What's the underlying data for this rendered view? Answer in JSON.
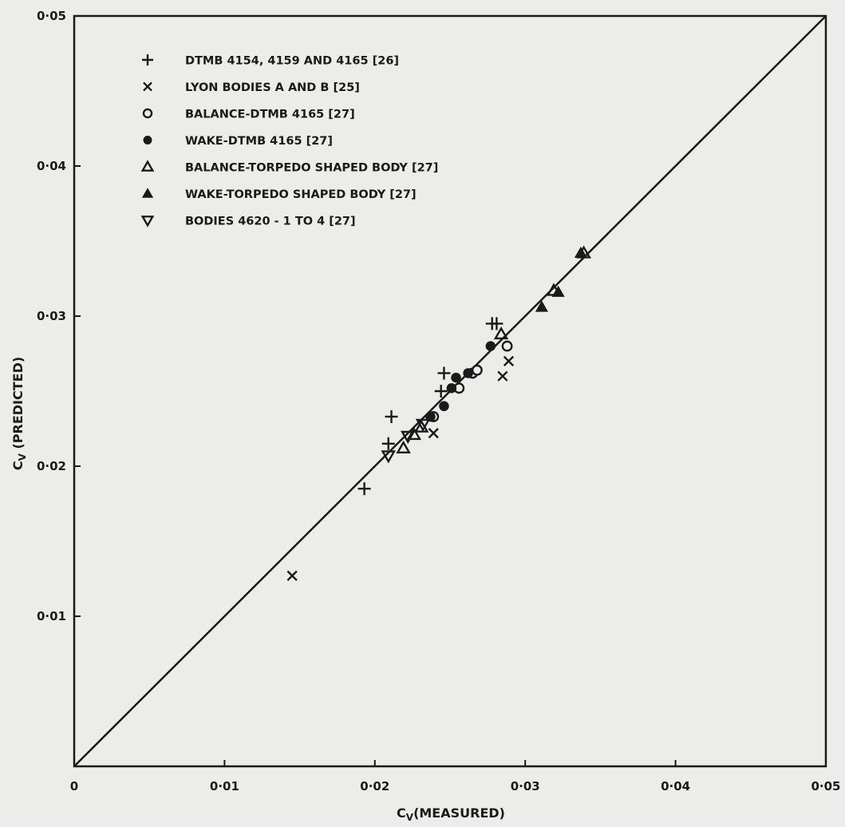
{
  "chart_data": {
    "type": "scatter",
    "xlabel": "C",
    "xlabel_sub": "V",
    "xlabel_rest": "(MEASURED)",
    "ylabel": "C",
    "ylabel_sub": "V",
    "ylabel_rest": " (PREDICTED)",
    "xlim": [
      0,
      0.05
    ],
    "ylim": [
      0,
      0.05
    ],
    "x_ticks": [
      0,
      0.01,
      0.02,
      0.03,
      0.04,
      0.05
    ],
    "x_tick_labels": [
      "0",
      "0·01",
      "0·02",
      "0·03",
      "0·04",
      "0·05"
    ],
    "y_ticks": [
      0.01,
      0.02,
      0.03,
      0.04,
      0.05
    ],
    "y_tick_labels": [
      "0·01",
      "0·02",
      "0·03",
      "0·04",
      "0·05"
    ],
    "grid": false,
    "legend_position": "top-left",
    "reference_line": {
      "x": [
        0,
        0.05
      ],
      "y": [
        0,
        0.05
      ]
    },
    "series": [
      {
        "name": "DTMB 4154, 4159 AND 4165 [26]",
        "marker": "plus",
        "points": [
          [
            0.0193,
            0.0185
          ],
          [
            0.0209,
            0.0215
          ],
          [
            0.0211,
            0.0233
          ],
          [
            0.0244,
            0.025
          ],
          [
            0.0246,
            0.0262
          ],
          [
            0.0278,
            0.0295
          ],
          [
            0.0281,
            0.0295
          ]
        ]
      },
      {
        "name": "LYON BODIES A AND B [25]",
        "marker": "cross",
        "points": [
          [
            0.0145,
            0.0127
          ],
          [
            0.0239,
            0.0222
          ],
          [
            0.0285,
            0.026
          ],
          [
            0.0289,
            0.027
          ]
        ]
      },
      {
        "name": "BALANCE-DTMB 4165 [27]",
        "marker": "circle-open",
        "points": [
          [
            0.0239,
            0.0233
          ],
          [
            0.0256,
            0.0252
          ],
          [
            0.0265,
            0.0262
          ],
          [
            0.0268,
            0.0264
          ],
          [
            0.0288,
            0.028
          ]
        ]
      },
      {
        "name": "WAKE-DTMB 4165 [27]",
        "marker": "circle-filled",
        "points": [
          [
            0.0237,
            0.0233
          ],
          [
            0.0246,
            0.024
          ],
          [
            0.0251,
            0.0252
          ],
          [
            0.0254,
            0.0259
          ],
          [
            0.0262,
            0.0262
          ],
          [
            0.0277,
            0.028
          ]
        ]
      },
      {
        "name": "BALANCE-TORPEDO SHAPED BODY [27]",
        "marker": "triangle-up-open",
        "points": [
          [
            0.0219,
            0.0212
          ],
          [
            0.0226,
            0.0221
          ],
          [
            0.0231,
            0.0226
          ],
          [
            0.0284,
            0.0288
          ],
          [
            0.0319,
            0.0317
          ],
          [
            0.0339,
            0.0342
          ]
        ]
      },
      {
        "name": "WAKE-TORPEDO SHAPED BODY [27]",
        "marker": "triangle-up-filled",
        "points": [
          [
            0.0311,
            0.0306
          ],
          [
            0.0322,
            0.0316
          ],
          [
            0.0337,
            0.0342
          ]
        ]
      },
      {
        "name": "BODIES 4620 - 1 TO 4 [27]",
        "marker": "triangle-down-open",
        "points": [
          [
            0.0209,
            0.0207
          ],
          [
            0.0222,
            0.022
          ],
          [
            0.0232,
            0.0228
          ]
        ]
      }
    ]
  },
  "colors": {
    "ink": "#1a1a1a",
    "paper": "#ececea"
  }
}
